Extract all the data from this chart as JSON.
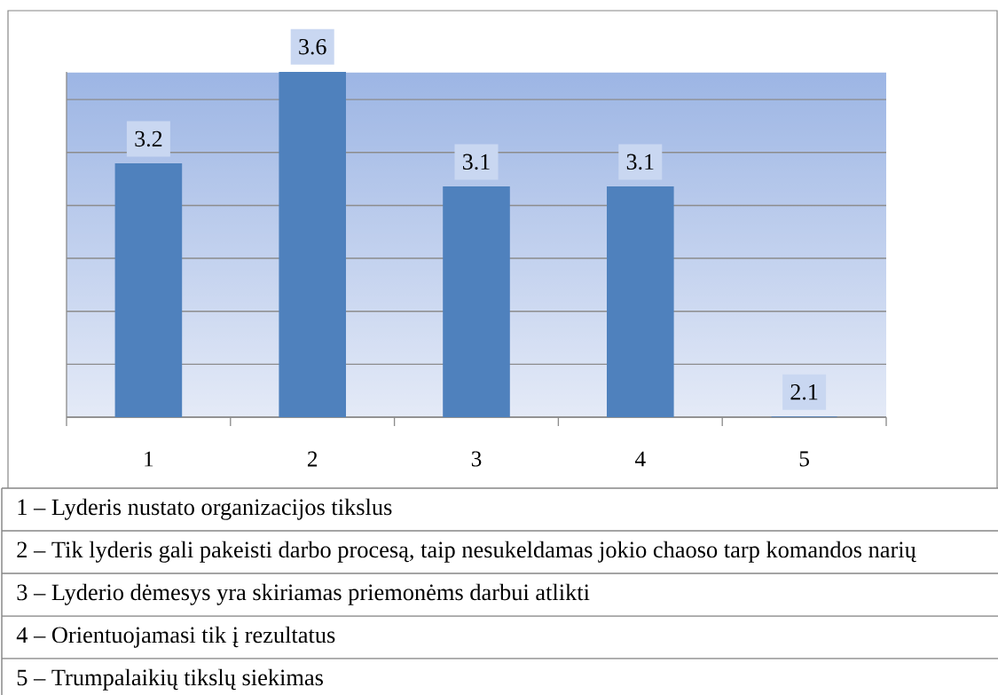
{
  "chart_data": {
    "type": "bar",
    "categories": [
      "1",
      "2",
      "3",
      "4",
      "5"
    ],
    "values": [
      3.2,
      3.6,
      3.1,
      3.1,
      2.1
    ],
    "color": "#4f81bd",
    "data_labels": true,
    "ylim": [
      2.1,
      3.6
    ],
    "yticks": [
      {
        "value": 2.1,
        "label": null
      },
      {
        "value": 2.33,
        "label": null
      },
      {
        "value": 2.56,
        "label": null
      },
      {
        "value": 2.79,
        "label": null
      },
      {
        "value": 3.02,
        "label": null
      },
      {
        "value": 3.25,
        "label": null
      },
      {
        "value": 3.48,
        "label": null
      }
    ],
    "grid": "y",
    "tick_labels": "x",
    "annotations": [
      "1 – Lyderis nustato organizacijos tikslus",
      "2 – Tik lyderis gali pakeisti darbo procesą, taip nesukeldamas jokio chaoso tarp komandos narių",
      "3 – Lyderio dėmesys yra skiriamas priemonėms darbui atlikti",
      "4 – Orientuojamasi tik į rezultatus",
      "5 – Trumpalaikių tikslų siekimas"
    ]
  }
}
